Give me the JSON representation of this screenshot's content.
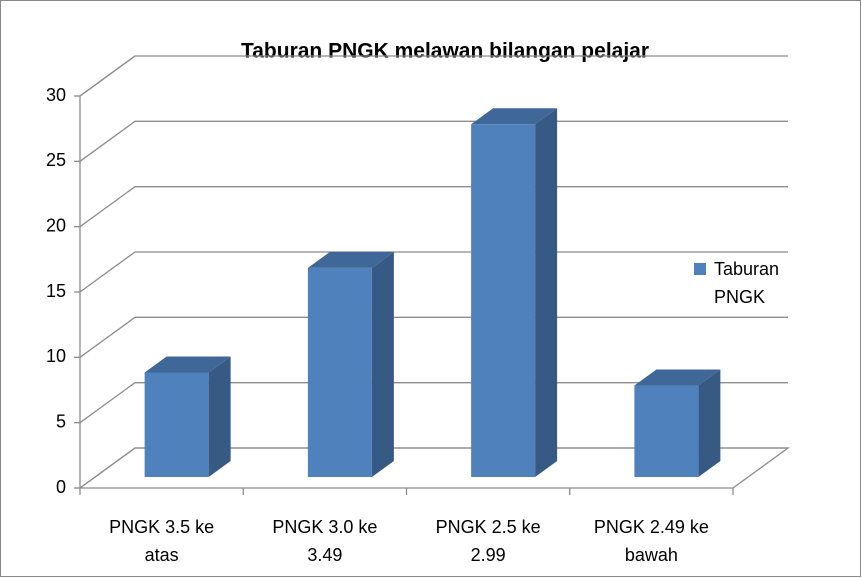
{
  "chart_data": {
    "type": "bar3d",
    "title": "Taburan PNGK melawan bilangan pelajar",
    "categories": [
      "PNGK 3.5 ke atas",
      "PNGK 3.0 ke 3.49",
      "PNGK 2.5 ke 2.99",
      "PNGK 2.49 ke bawah"
    ],
    "series": [
      {
        "name": "Taburan PNGK",
        "color": "#4f81bd",
        "values": [
          8,
          16,
          27,
          7
        ]
      }
    ],
    "ylim": [
      0,
      30
    ],
    "yticks": [
      0,
      5,
      10,
      15,
      20,
      25,
      30
    ],
    "grid": true,
    "legend": "right"
  }
}
